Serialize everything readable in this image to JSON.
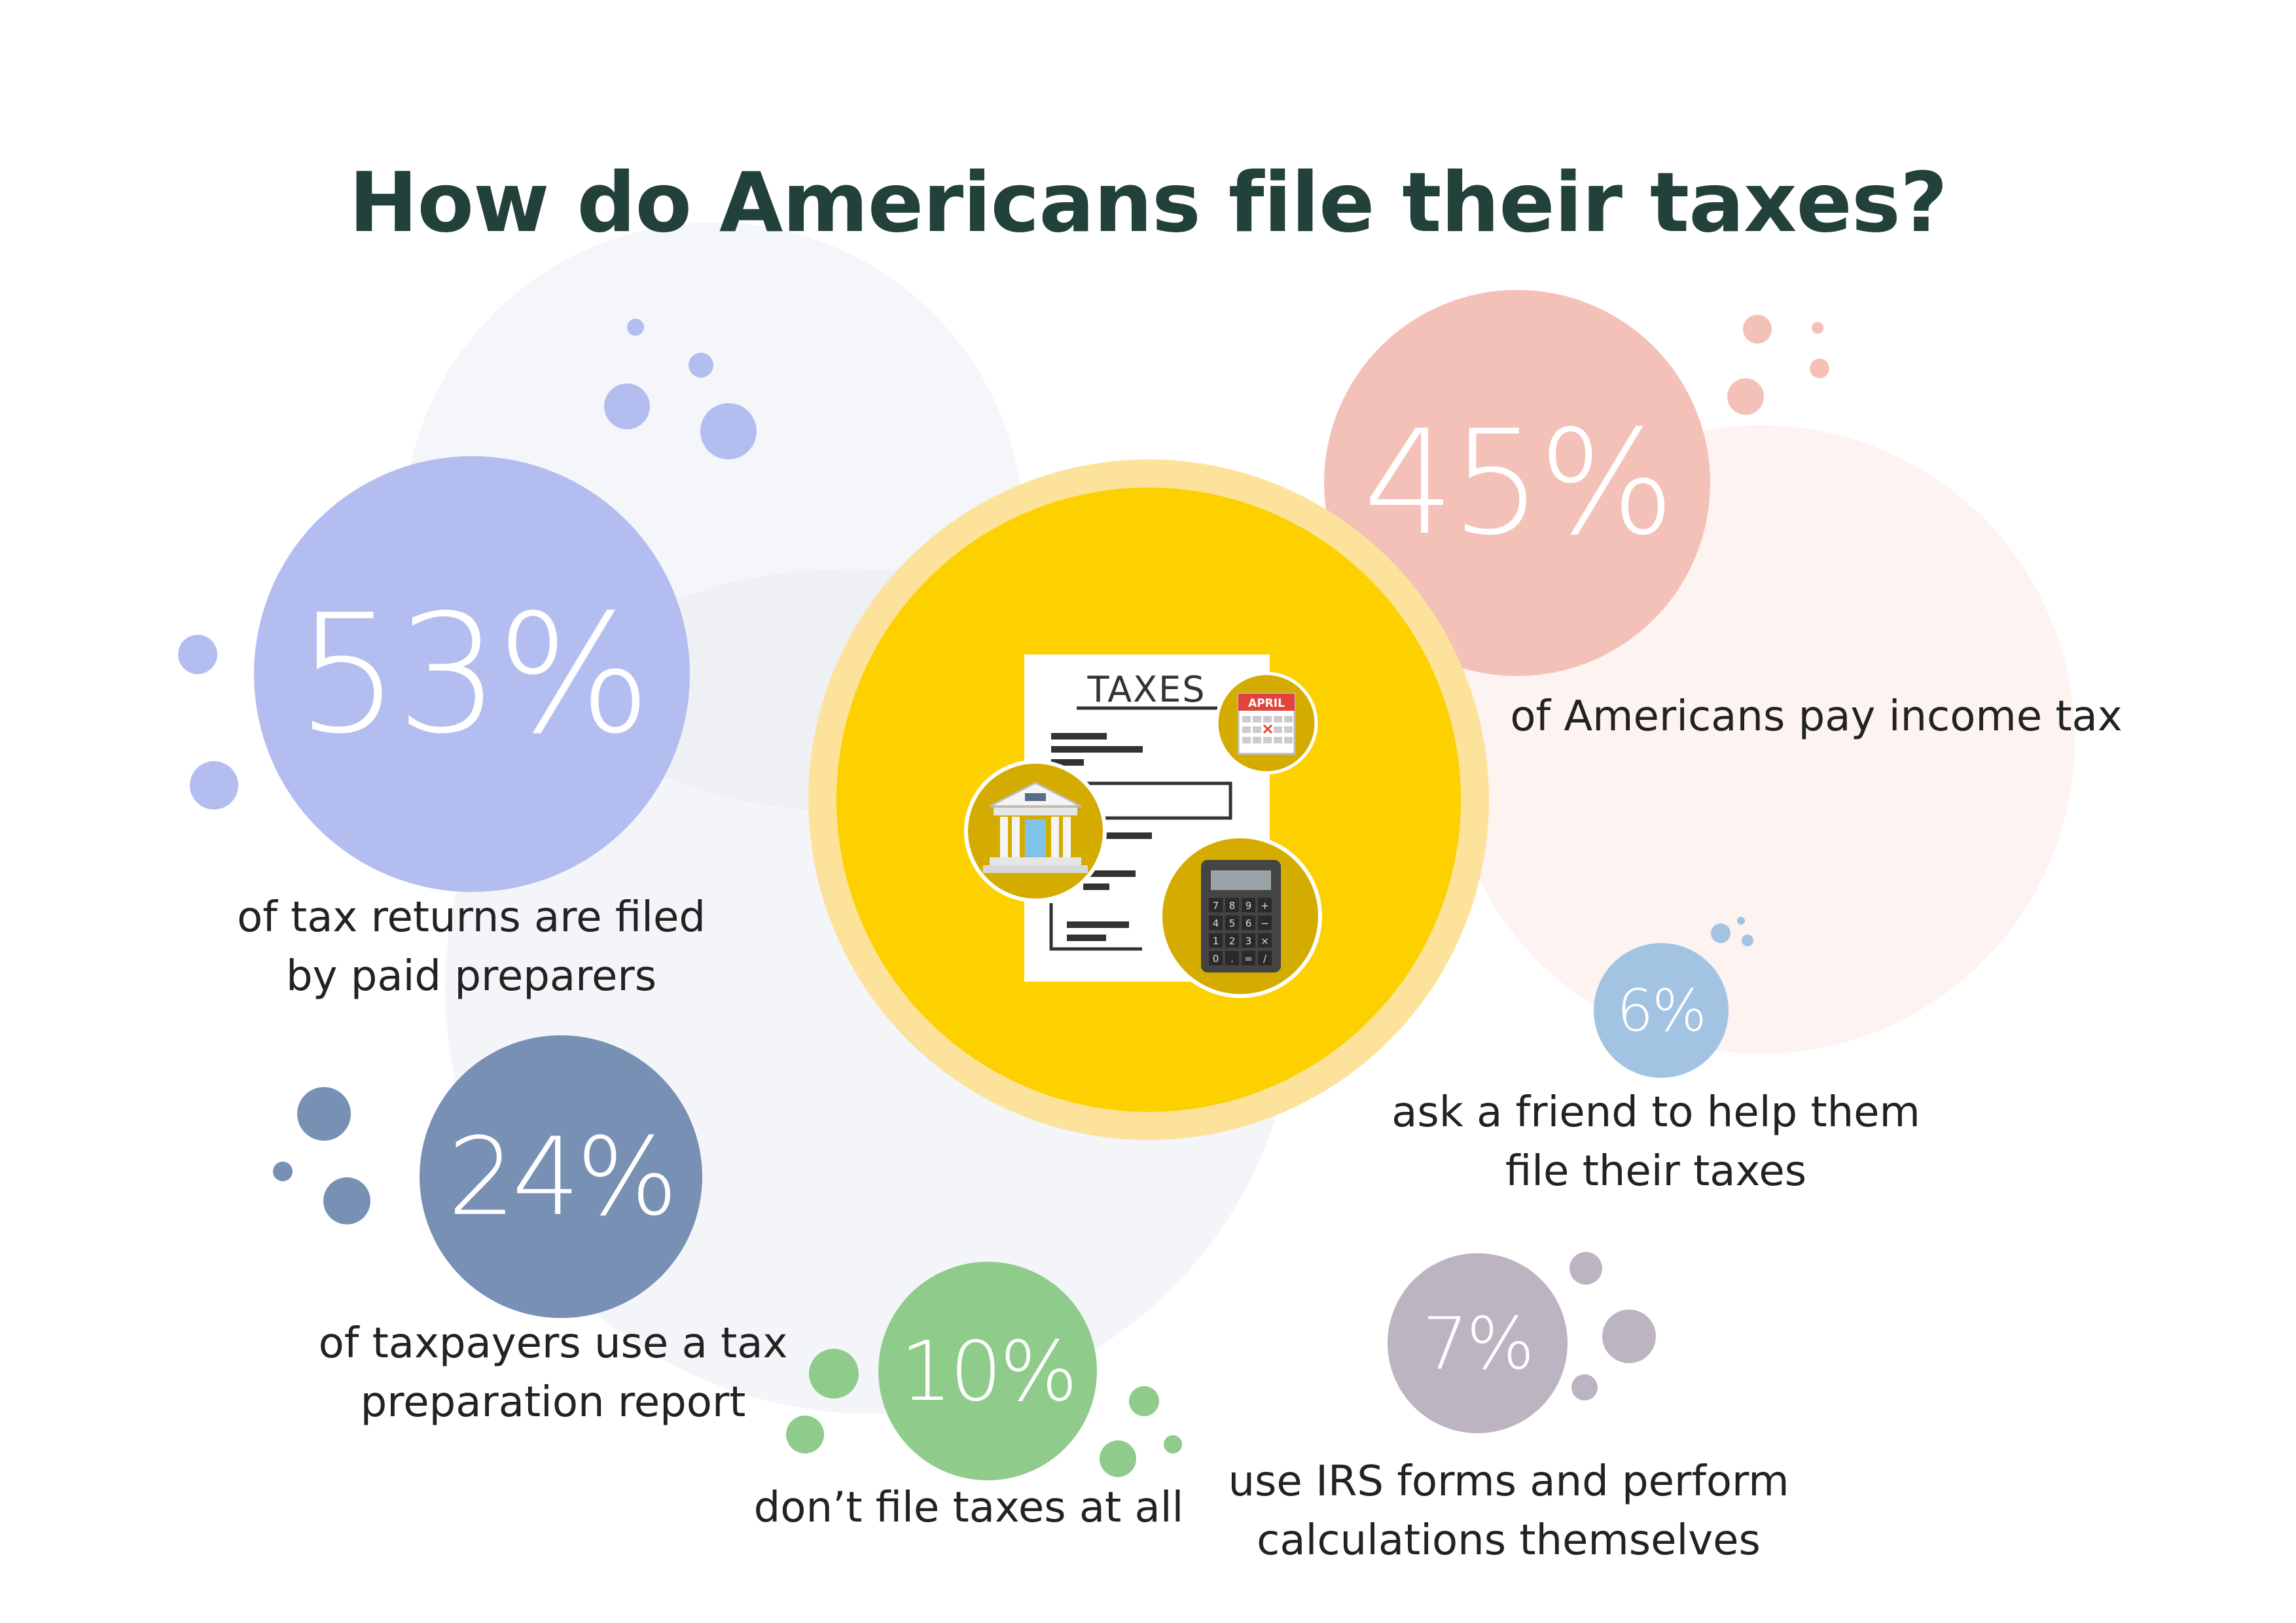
{
  "title": "How do Americans file their taxes?",
  "stats": [
    {
      "id": "paid-preparers",
      "value": "53%",
      "caption_lines": [
        "of tax returns are filed",
        "by paid preparers"
      ],
      "color": "#b3bdef"
    },
    {
      "id": "pay-income-tax",
      "value": "45%",
      "caption_lines": [
        "of Americans pay income tax"
      ],
      "color": "#f4c1b9"
    },
    {
      "id": "tax-prep-report",
      "value": "24%",
      "caption_lines": [
        "of taxpayers use a tax",
        "preparation report"
      ],
      "color": "#7990b5"
    },
    {
      "id": "dont-file",
      "value": "10%",
      "caption_lines": [
        "don’t file taxes at all"
      ],
      "color": "#8fcc8c"
    },
    {
      "id": "ask-friend",
      "value": "6%",
      "caption_lines": [
        "ask a friend to help them",
        "file their taxes"
      ],
      "color": "#a3c3e3"
    },
    {
      "id": "irs-forms",
      "value": "7%",
      "caption_lines": [
        "use IRS forms and perform",
        "calculations themselves"
      ],
      "color": "#bdb4c2"
    }
  ],
  "illustration": {
    "document_heading": "TAXES",
    "calendar_label": "APRIL",
    "calculator_keys": [
      "7",
      "8",
      "9",
      "+",
      "4",
      "5",
      "6",
      "−",
      "1",
      "2",
      "3",
      "×",
      "0",
      ".",
      "=",
      "/"
    ],
    "icons": [
      "tax-document-icon",
      "calendar-icon",
      "bank-icon",
      "calculator-icon"
    ],
    "colors": {
      "center": "#fdd000",
      "center_ring": "#fde29b",
      "badge": "#d4ac00"
    }
  }
}
